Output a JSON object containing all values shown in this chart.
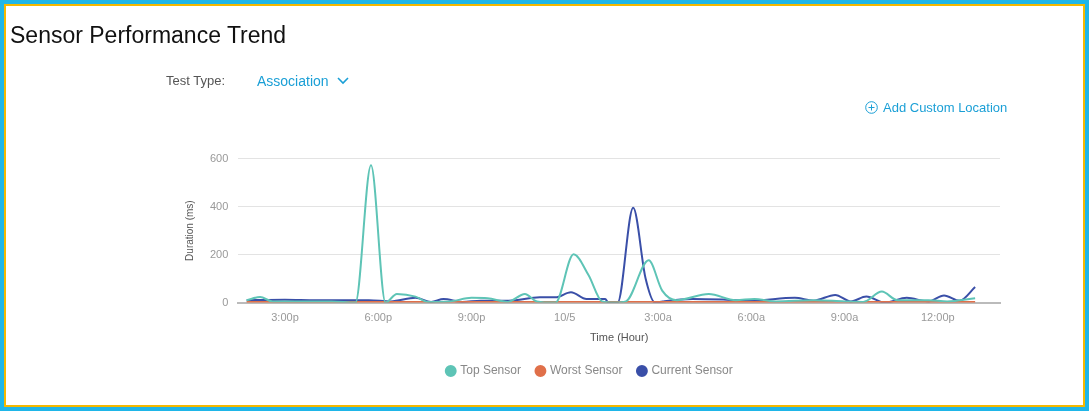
{
  "chart_data": {
    "type": "line",
    "title": "Sensor Performance Trend",
    "xlabel": "Time (Hour)",
    "ylabel": "Duration (ms)",
    "annotations": [
      "Test Type:",
      "Association",
      "Add Custom Location"
    ],
    "xlim": [
      "--10-04T13:30",
      "--10-05T14:00"
    ],
    "xticks": [
      {
        "value": "--10-04T15:00",
        "label": "3:00p"
      },
      {
        "value": "--10-04T18:00",
        "label": "6:00p"
      },
      {
        "value": "--10-04T21:00",
        "label": "9:00p"
      },
      {
        "value": "--10-05T00:00",
        "label": "10/5"
      },
      {
        "value": "--10-05T03:00",
        "label": "3:00a"
      },
      {
        "value": "--10-05T06:00",
        "label": "6:00a"
      },
      {
        "value": "--10-05T09:00",
        "label": "9:00a"
      },
      {
        "value": "--10-05T12:00",
        "label": "12:00p"
      }
    ],
    "ylim": [
      0,
      600
    ],
    "yticks": [
      0,
      200,
      400,
      600
    ],
    "grid": "y",
    "legend": "bottom",
    "marker": "none",
    "line_style": "solid",
    "series": [
      {
        "name": "Top Sensor",
        "color": "#5ec4b6",
        "x": [
          "--10-04T13:46",
          "--10-04T14:12",
          "--10-04T14:36",
          "--10-04T15:30",
          "--10-04T16:30",
          "--10-04T17:16",
          "--10-04T17:46",
          "--10-04T18:14",
          "--10-04T18:36",
          "--10-04T19:12",
          "--10-04T19:36",
          "--10-04T20:18",
          "--10-04T21:00",
          "--10-04T21:31",
          "--10-04T22:10",
          "--10-04T22:43",
          "--10-04T23:06",
          "--10-04T23:42",
          "--10-05T00:17",
          "--10-05T00:46",
          "--10-05T01:12",
          "--10-05T01:36",
          "--10-05T01:58",
          "--10-05T02:42",
          "--10-05T03:08",
          "--10-05T03:36",
          "--10-05T04:38",
          "--10-05T05:30",
          "--10-05T06:06",
          "--10-05T06:48",
          "--10-05T08:00",
          "--10-05T09:00",
          "--10-05T09:36",
          "--10-05T10:12",
          "--10-05T10:42",
          "--10-05T11:42",
          "--10-05T12:18",
          "--10-05T13:12"
        ],
        "values": [
          10,
          23,
          5,
          5,
          5,
          0,
          572,
          0,
          36,
          25,
          3,
          5,
          20,
          18,
          3,
          36,
          5,
          0,
          201,
          114,
          5,
          0,
          5,
          176,
          50,
          10,
          36,
          10,
          15,
          5,
          10,
          5,
          3,
          46,
          10,
          10,
          5,
          18
        ]
      },
      {
        "name": "Worst Sensor",
        "color": "#e0704a",
        "x": [
          "--10-04T13:46",
          "--10-04T16:00",
          "--10-04T19:00",
          "--10-04T22:00",
          "--10-05T01:00",
          "--10-05T04:00",
          "--10-05T07:00",
          "--10-05T10:00",
          "--10-05T13:12"
        ],
        "values": [
          3,
          3,
          3,
          3,
          3,
          3,
          3,
          3,
          3
        ]
      },
      {
        "name": "Current Sensor",
        "color": "#3a4fa8",
        "x": [
          "--10-04T13:46",
          "--10-04T15:00",
          "--10-04T16:00",
          "--10-04T17:42",
          "--10-04T18:24",
          "--10-04T19:12",
          "--10-04T19:42",
          "--10-04T20:06",
          "--10-04T20:42",
          "--10-04T21:18",
          "--10-04T22:12",
          "--10-04T23:12",
          "--10-04T23:42",
          "--10-05T00:12",
          "--10-05T00:42",
          "--10-05T01:18",
          "--10-05T01:24",
          "--10-05T01:42",
          "--10-05T02:12",
          "--10-05T02:36",
          "--10-05T02:54",
          "--10-05T03:09",
          "--10-05T04:06",
          "--10-05T05:12",
          "--10-05T06:00",
          "--10-05T07:24",
          "--10-05T08:00",
          "--10-05T08:42",
          "--10-05T09:12",
          "--10-05T09:42",
          "--10-05T10:18",
          "--10-05T11:00",
          "--10-05T11:42",
          "--10-05T12:12",
          "--10-05T12:42",
          "--10-05T13:12"
        ],
        "values": [
          10,
          12,
          10,
          10,
          5,
          20,
          3,
          15,
          3,
          8,
          8,
          22,
          22,
          43,
          15,
          15,
          0,
          0,
          395,
          100,
          0,
          5,
          15,
          12,
          8,
          20,
          8,
          32,
          5,
          25,
          0,
          20,
          5,
          30,
          8,
          65
        ]
      }
    ]
  }
}
